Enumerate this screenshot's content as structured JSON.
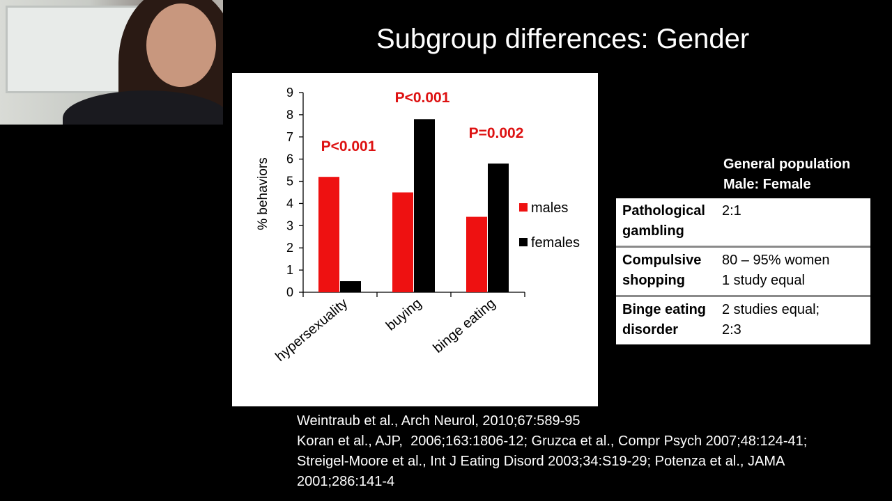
{
  "slide": {
    "title": "Subgroup differences: Gender"
  },
  "chart_data": {
    "type": "bar",
    "categories": [
      "hypersexuality",
      "buying",
      "binge eating"
    ],
    "series": [
      {
        "name": "males",
        "values": [
          5.2,
          4.5,
          3.4
        ],
        "color": "#ee1111"
      },
      {
        "name": "females",
        "values": [
          0.5,
          7.8,
          5.8
        ],
        "color": "#000000"
      }
    ],
    "ylabel": "% behaviors",
    "ylim": [
      0,
      9
    ],
    "yticks": [
      0,
      1,
      2,
      3,
      4,
      5,
      6,
      7,
      8,
      9
    ],
    "annotations": [
      "P<0.001",
      "P<0.001",
      "P=0.002"
    ],
    "annotation_color": "#dd1111",
    "legend_placement": "right",
    "grid": false
  },
  "table": {
    "header_line1": "General population",
    "header_line2": "Male: Female",
    "rows": [
      {
        "condition_line1": "Pathological",
        "condition_line2": "gambling",
        "ratio_line1": "2:1",
        "ratio_line2": ""
      },
      {
        "condition_line1": "Compulsive",
        "condition_line2": "shopping",
        "ratio_line1": "80 – 95% women",
        "ratio_line2": "1 study equal"
      },
      {
        "condition_line1": "Binge eating",
        "condition_line2": "disorder",
        "ratio_line1": "2 studies equal;",
        "ratio_line2": "2:3"
      }
    ]
  },
  "references": [
    "Weintraub et al., Arch Neurol, 2010;67:589-95",
    "Koran et al., AJP,  2006;163:1806-12; Gruzca et al., Compr Psych 2007;48:124-41;",
    "Streigel-Moore et al., Int J Eating Disord 2003;34:S19-29; Potenza et al., JAMA",
    "2001;286:141-4"
  ]
}
